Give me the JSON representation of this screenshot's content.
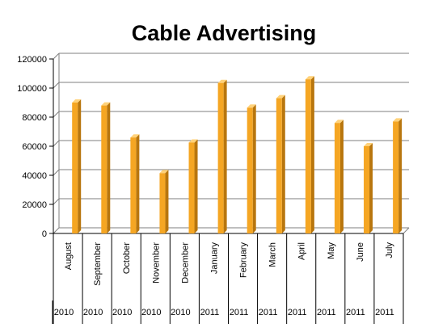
{
  "chart_data": {
    "type": "bar",
    "title": "Cable Advertising",
    "categories": [
      "August",
      "September",
      "October",
      "November",
      "December",
      "January",
      "February",
      "March",
      "April",
      "May",
      "June",
      "July"
    ],
    "years": [
      "2010",
      "2010",
      "2010",
      "2010",
      "2010",
      "2011",
      "2011",
      "2011",
      "2011",
      "2011",
      "2011",
      "2011"
    ],
    "values": [
      90000,
      88000,
      66000,
      41500,
      62500,
      103500,
      86500,
      93000,
      106000,
      76000,
      60000,
      77000
    ],
    "ylim": [
      0,
      120000
    ],
    "yticks": [
      0,
      20000,
      40000,
      60000,
      80000,
      100000,
      120000
    ],
    "ytick_labels": [
      "0",
      "20000",
      "40000",
      "60000",
      "80000",
      "100000",
      "120000"
    ],
    "grid": true,
    "legend": "none",
    "colors": {
      "bar_front": "#F5A623",
      "bar_side": "#B8760E",
      "bar_top": "#FFD27A",
      "grid": "#7F7F7F"
    }
  }
}
